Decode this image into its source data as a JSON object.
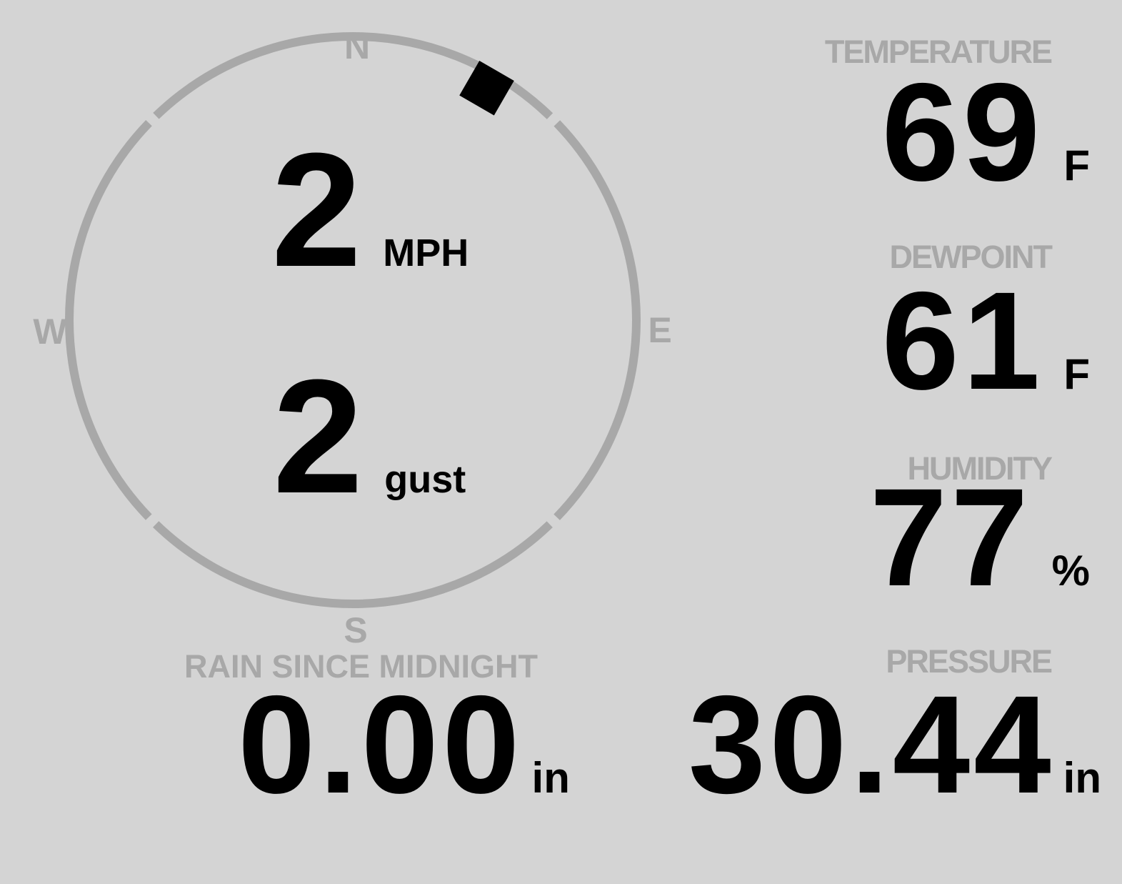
{
  "display": {
    "background": "#d4d4d4",
    "muted_color": "#a8a8a8",
    "value_color": "#000000"
  },
  "compass": {
    "cardinals": {
      "north": "N",
      "east": "E",
      "south": "S",
      "west": "W"
    },
    "wind_direction_deg": 30,
    "speed": {
      "value": "2",
      "unit": "MPH"
    },
    "gust": {
      "value": "2",
      "unit": "gust"
    }
  },
  "metrics": {
    "temperature": {
      "label": "TEMPERATURE",
      "value": "69",
      "unit": "F"
    },
    "dewpoint": {
      "label": "DEWPOINT",
      "value": "61",
      "unit": "F"
    },
    "humidity": {
      "label": "HUMIDITY",
      "value": "77",
      "unit": "%"
    },
    "rain": {
      "label": "RAIN SINCE MIDNIGHT",
      "value": "0.00",
      "unit": "in"
    },
    "pressure": {
      "label": "PRESSURE",
      "value": "30.44",
      "unit": "in"
    }
  }
}
